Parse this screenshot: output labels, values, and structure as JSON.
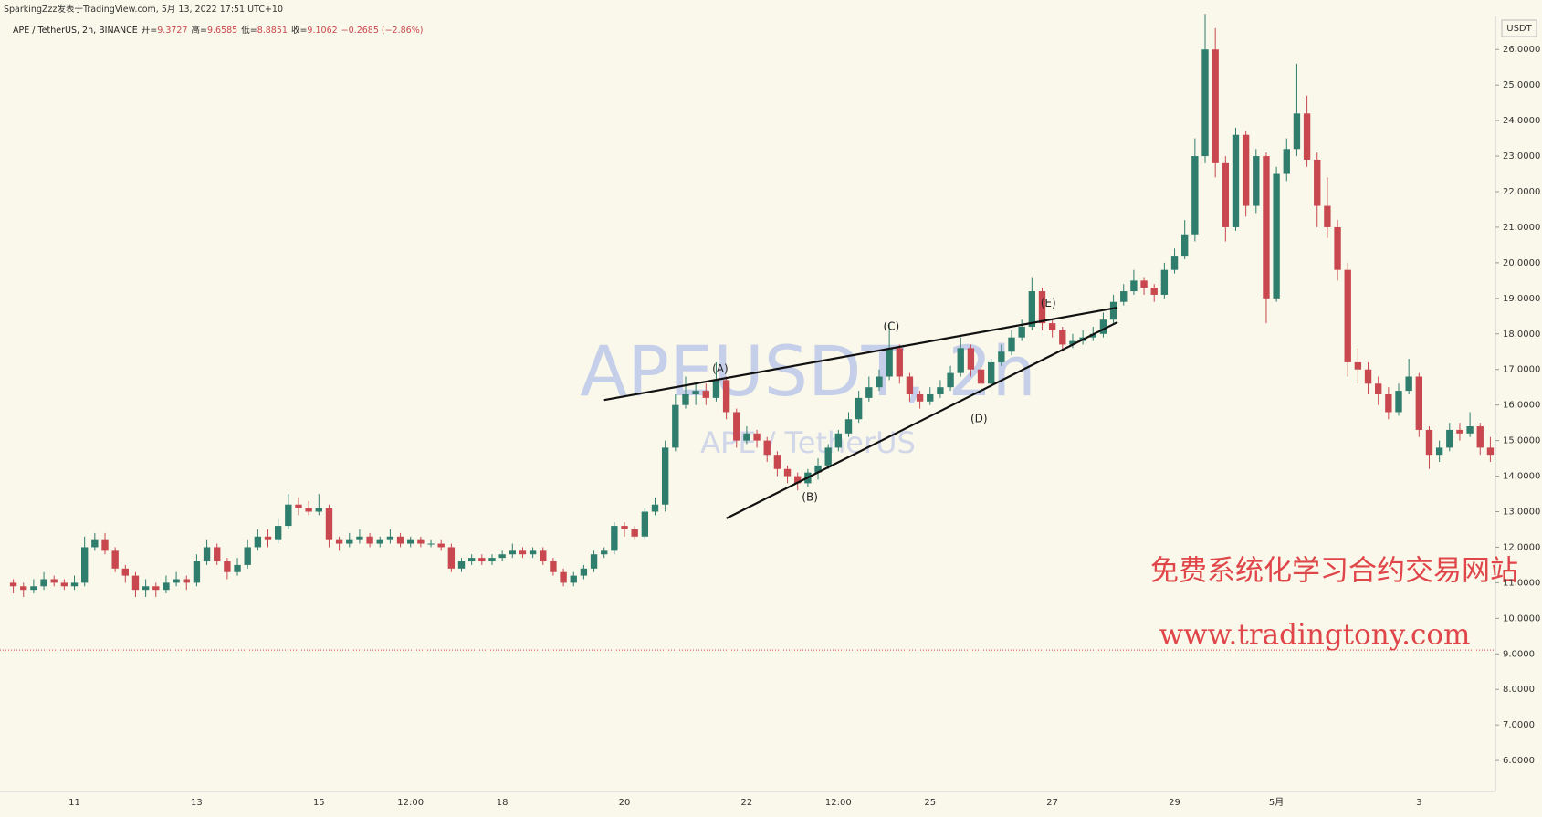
{
  "header": {
    "author_line": "SparkingZzz发表于TradingView.com, 5月 13, 2022 17:51 UTC+10"
  },
  "chart_data": {
    "type": "candlestick",
    "symbol": "APE / TetherUS, 2h, BINANCE",
    "legend_ohlc": [
      {
        "label": "开=",
        "value": 9.3727
      },
      {
        "label": "高=",
        "value": 9.6585
      },
      {
        "label": "低=",
        "value": 8.8851
      },
      {
        "label": "收=",
        "value": 9.1062
      }
    ],
    "change": "−0.2685 (−2.86%)",
    "watermark": "APEUSDT, 2h",
    "watermark_sub": "APE / TetherUS",
    "currency": "USDT",
    "up_color": "#2f7d6d",
    "down_color": "#c9474f",
    "price_line_color": "#e0454a",
    "categories": [
      null,
      null,
      null,
      null,
      null,
      null,
      "11",
      null,
      null,
      null,
      null,
      null,
      null,
      null,
      null,
      null,
      null,
      null,
      "13",
      null,
      null,
      null,
      null,
      null,
      null,
      null,
      null,
      null,
      null,
      null,
      "15",
      null,
      null,
      null,
      null,
      null,
      null,
      null,
      null,
      "12:00",
      null,
      null,
      null,
      null,
      null,
      null,
      null,
      null,
      "18",
      null,
      null,
      null,
      null,
      null,
      null,
      null,
      null,
      null,
      null,
      null,
      "20",
      null,
      null,
      null,
      null,
      null,
      null,
      null,
      null,
      null,
      null,
      null,
      "22",
      null,
      null,
      null,
      null,
      null,
      null,
      null,
      null,
      "12:00",
      null,
      null,
      null,
      null,
      null,
      null,
      null,
      null,
      "25",
      null,
      null,
      null,
      null,
      null,
      null,
      null,
      null,
      null,
      null,
      null,
      "27",
      null,
      null,
      null,
      null,
      null,
      null,
      null,
      null,
      null,
      null,
      null,
      "29",
      null,
      null,
      null,
      null,
      null,
      null,
      null,
      null,
      null,
      "5月",
      null,
      null,
      null,
      null,
      null,
      null,
      null,
      null,
      null,
      null,
      null,
      null,
      null,
      "3",
      null,
      null,
      null,
      null,
      null,
      null,
      null
    ],
    "open": [
      11.0,
      10.9,
      10.8,
      10.9,
      11.1,
      11.0,
      10.9,
      11.0,
      12.0,
      12.2,
      11.9,
      11.4,
      11.2,
      10.8,
      10.9,
      10.8,
      11.0,
      11.1,
      11.0,
      11.6,
      12.0,
      11.6,
      11.3,
      11.5,
      12.0,
      12.3,
      12.2,
      12.6,
      13.2,
      13.1,
      13.0,
      13.1,
      12.2,
      12.1,
      12.2,
      12.3,
      12.1,
      12.2,
      12.3,
      12.1,
      12.2,
      12.1,
      12.1,
      12.0,
      11.4,
      11.6,
      11.7,
      11.6,
      11.7,
      11.8,
      11.9,
      11.8,
      11.9,
      11.6,
      11.3,
      11.0,
      11.2,
      11.4,
      11.8,
      11.9,
      12.6,
      12.5,
      12.3,
      13.0,
      13.2,
      14.8,
      16.0,
      16.3,
      16.4,
      16.2,
      16.7,
      15.8,
      15.0,
      15.2,
      15.0,
      14.6,
      14.2,
      14.0,
      13.8,
      14.1,
      14.3,
      14.8,
      15.2,
      15.6,
      16.2,
      16.5,
      16.8,
      17.6,
      16.8,
      16.3,
      16.1,
      16.3,
      16.5,
      16.9,
      17.6,
      17.0,
      16.6,
      17.2,
      17.5,
      17.9,
      18.2,
      19.2,
      18.3,
      18.1,
      17.7,
      17.8,
      17.9,
      18.0,
      18.4,
      18.9,
      19.2,
      19.5,
      19.3,
      19.1,
      19.8,
      20.2,
      20.8,
      23.0,
      26.0,
      22.8,
      21.0,
      23.6,
      21.6,
      23.0,
      19.0,
      22.5,
      23.2,
      24.2,
      22.9,
      21.6,
      21.0,
      19.8,
      17.2,
      17.0,
      16.6,
      16.3,
      15.8,
      16.4,
      16.8,
      15.3,
      14.6,
      14.8,
      15.3,
      15.2,
      15.4,
      14.8
    ],
    "high": [
      11.1,
      11.0,
      11.1,
      11.3,
      11.2,
      11.1,
      11.2,
      12.3,
      12.4,
      12.4,
      12.0,
      11.5,
      11.3,
      11.1,
      11.0,
      11.2,
      11.3,
      11.2,
      11.8,
      12.2,
      12.1,
      11.7,
      11.7,
      12.2,
      12.5,
      12.5,
      12.8,
      13.5,
      13.4,
      13.3,
      13.5,
      13.2,
      12.3,
      12.4,
      12.5,
      12.4,
      12.3,
      12.5,
      12.4,
      12.3,
      12.3,
      12.2,
      12.2,
      12.1,
      11.7,
      11.8,
      11.8,
      11.8,
      11.9,
      12.1,
      12.0,
      12.0,
      12.0,
      11.7,
      11.4,
      11.3,
      11.5,
      11.9,
      12.0,
      12.7,
      12.7,
      12.6,
      13.1,
      13.4,
      15.0,
      16.3,
      16.8,
      16.6,
      16.6,
      17.2,
      16.8,
      15.9,
      15.4,
      15.3,
      15.1,
      14.7,
      14.3,
      14.1,
      14.2,
      14.5,
      14.9,
      15.3,
      15.8,
      16.4,
      16.8,
      17.0,
      18.3,
      17.7,
      16.9,
      16.4,
      16.5,
      16.7,
      17.1,
      17.9,
      17.7,
      17.1,
      17.3,
      17.7,
      18.1,
      18.4,
      19.6,
      19.3,
      18.4,
      18.2,
      18.0,
      18.1,
      18.2,
      18.6,
      19.1,
      19.4,
      19.8,
      19.6,
      19.4,
      20.0,
      20.4,
      21.2,
      23.5,
      27.0,
      26.6,
      23.0,
      23.8,
      23.7,
      23.2,
      23.1,
      22.7,
      23.5,
      25.6,
      24.7,
      23.1,
      22.4,
      21.2,
      20.0,
      17.6,
      17.2,
      16.8,
      16.5,
      16.6,
      17.3,
      16.9,
      15.4,
      15.0,
      15.5,
      15.5,
      15.8,
      15.5,
      15.1
    ],
    "low": [
      10.7,
      10.6,
      10.7,
      10.8,
      10.9,
      10.8,
      10.8,
      10.9,
      11.9,
      11.8,
      11.3,
      11.0,
      10.6,
      10.6,
      10.6,
      10.7,
      10.9,
      10.8,
      10.9,
      11.5,
      11.5,
      11.1,
      11.2,
      11.4,
      11.9,
      12.0,
      12.1,
      12.5,
      12.9,
      12.9,
      12.9,
      12.0,
      11.9,
      12.0,
      12.1,
      12.0,
      12.0,
      12.1,
      12.0,
      12.0,
      12.0,
      12.0,
      11.9,
      11.3,
      11.3,
      11.5,
      11.5,
      11.5,
      11.6,
      11.7,
      11.7,
      11.7,
      11.5,
      11.2,
      10.9,
      10.9,
      11.1,
      11.3,
      11.7,
      11.8,
      12.3,
      12.2,
      12.2,
      12.9,
      13.0,
      14.7,
      15.9,
      16.0,
      16.0,
      16.1,
      15.6,
      14.8,
      14.9,
      14.8,
      14.4,
      14.0,
      13.8,
      13.6,
      13.7,
      13.9,
      14.2,
      14.7,
      15.1,
      15.5,
      16.1,
      16.4,
      16.7,
      16.6,
      16.1,
      15.9,
      16.0,
      16.2,
      16.4,
      16.8,
      16.8,
      16.4,
      16.5,
      17.1,
      17.4,
      17.8,
      18.1,
      18.1,
      17.9,
      17.5,
      17.6,
      17.7,
      17.8,
      17.9,
      18.3,
      18.8,
      19.1,
      19.1,
      18.9,
      19.0,
      19.7,
      20.1,
      20.6,
      22.8,
      22.4,
      20.6,
      20.9,
      21.3,
      21.4,
      18.3,
      18.9,
      22.3,
      23.0,
      22.7,
      21.0,
      20.7,
      19.5,
      16.8,
      16.6,
      16.3,
      16.0,
      15.6,
      15.7,
      16.3,
      15.1,
      14.2,
      14.4,
      14.7,
      15.0,
      15.1,
      14.6,
      14.4
    ],
    "close": [
      10.9,
      10.8,
      10.9,
      11.1,
      11.0,
      10.9,
      11.0,
      12.0,
      12.2,
      11.9,
      11.4,
      11.2,
      10.8,
      10.9,
      10.8,
      11.0,
      11.1,
      11.0,
      11.6,
      12.0,
      11.6,
      11.3,
      11.5,
      12.0,
      12.3,
      12.2,
      12.6,
      13.2,
      13.1,
      13.0,
      13.1,
      12.2,
      12.1,
      12.2,
      12.3,
      12.1,
      12.2,
      12.3,
      12.1,
      12.2,
      12.1,
      12.1,
      12.0,
      11.4,
      11.6,
      11.7,
      11.6,
      11.7,
      11.8,
      11.9,
      11.8,
      11.9,
      11.6,
      11.3,
      11.0,
      11.2,
      11.4,
      11.8,
      11.9,
      12.6,
      12.5,
      12.3,
      13.0,
      13.2,
      14.8,
      16.0,
      16.3,
      16.4,
      16.2,
      16.7,
      15.8,
      15.0,
      15.2,
      15.0,
      14.6,
      14.2,
      14.0,
      13.8,
      14.1,
      14.3,
      14.8,
      15.2,
      15.6,
      16.2,
      16.5,
      16.8,
      17.6,
      16.8,
      16.3,
      16.1,
      16.3,
      16.5,
      16.9,
      17.6,
      17.0,
      16.6,
      17.2,
      17.5,
      17.9,
      18.2,
      19.2,
      18.3,
      18.1,
      17.7,
      17.8,
      17.9,
      18.0,
      18.4,
      18.9,
      19.2,
      19.5,
      19.3,
      19.1,
      19.8,
      20.2,
      20.8,
      23.0,
      26.0,
      22.8,
      21.0,
      23.6,
      21.6,
      23.0,
      19.0,
      22.5,
      23.2,
      24.2,
      22.9,
      21.6,
      21.0,
      19.8,
      17.2,
      17.0,
      16.6,
      16.3,
      15.8,
      16.4,
      16.8,
      15.3,
      14.6,
      14.8,
      15.3,
      15.2,
      15.4,
      14.8,
      14.6
    ],
    "ylim": [
      5.13,
      26.93
    ],
    "yticks": [
      {
        "value": 6,
        "label": "6.0000"
      },
      {
        "value": 7,
        "label": "7.0000"
      },
      {
        "value": 8,
        "label": "8.0000"
      },
      {
        "value": 9,
        "label": "9.0000"
      },
      {
        "value": 10,
        "label": "10.0000"
      },
      {
        "value": 11,
        "label": "11.0000"
      },
      {
        "value": 12,
        "label": "12.0000"
      },
      {
        "value": 13,
        "label": "13.0000"
      },
      {
        "value": 14,
        "label": "14.0000"
      },
      {
        "value": 15,
        "label": "15.0000"
      },
      {
        "value": 16,
        "label": "16.0000"
      },
      {
        "value": 17,
        "label": "17.0000"
      },
      {
        "value": 18,
        "label": "18.0000"
      },
      {
        "value": 19,
        "label": "19.0000"
      },
      {
        "value": 20,
        "label": "20.0000"
      },
      {
        "value": 21,
        "label": "21.0000"
      },
      {
        "value": 22,
        "label": "22.0000"
      },
      {
        "value": 23,
        "label": "23.0000"
      },
      {
        "value": 24,
        "label": "24.0000"
      },
      {
        "value": 25,
        "label": "25.0000"
      },
      {
        "value": 26,
        "label": "26.0000"
      }
    ],
    "trendlines": [
      {
        "x": [
          58.0,
          108.4
        ],
        "y": [
          16.14,
          18.74
        ]
      },
      {
        "x": [
          70.0,
          108.4
        ],
        "y": [
          12.81,
          18.33
        ]
      }
    ],
    "annotations": [
      {
        "text": "(A)",
        "x": 69.4,
        "y": 17.0
      },
      {
        "text": "(B)",
        "x": 78.2,
        "y": 13.4
      },
      {
        "text": "(C)",
        "x": 86.2,
        "y": 18.2
      },
      {
        "text": "(D)",
        "x": 94.8,
        "y": 15.6
      },
      {
        "text": "(E)",
        "x": 101.6,
        "y": 18.85
      }
    ]
  },
  "promo": {
    "line1": "免费系统化学习合约交易网站",
    "line2": "www.tradingtony.com"
  }
}
